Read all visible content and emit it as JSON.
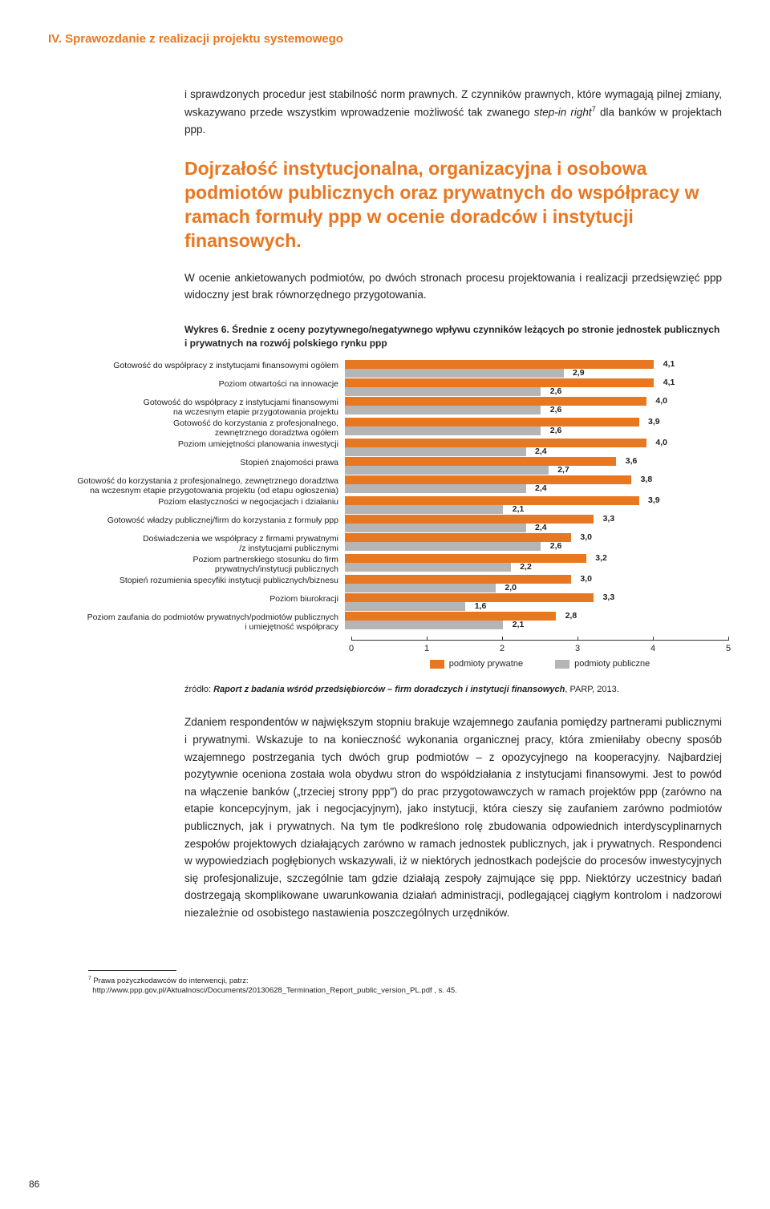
{
  "header": "IV. Sprawozdanie z realizacji projektu systemowego",
  "para1_a": "i sprawdzonych procedur jest stabilność norm prawnych. Z czynników prawnych, które wymagają pilnej zmiany, wskazywano przede wszystkim wprowadzenie możliwość tak zwanego ",
  "para1_i": "step-in right",
  "para1_b": " dla banków w projektach ppp.",
  "section_heading": "Dojrzałość instytucjonalna, organizacyjna i osobowa podmiotów publicznych oraz prywatnych do współpracy w ramach formuły ppp w ocenie doradców i instytucji finansowych.",
  "para2": "W ocenie ankietowanych podmiotów, po dwóch stronach procesu projektowania i realizacji przedsięwzięć ppp widoczny jest brak równorzędnego przygotowania.",
  "chart_caption": "Wykres 6. Średnie z oceny pozytywnego/negatywnego wpływu czynników leżących po stronie jednostek publicznych i prywatnych na rozwój polskiego rynku ppp",
  "chart": {
    "xmax": 5,
    "color_orange": "#e87722",
    "color_gray": "#b5b5b5",
    "xticks": [
      0,
      1,
      2,
      3,
      4,
      5
    ],
    "legend_orange": "podmioty prywatne",
    "legend_gray": "podmioty publiczne",
    "rows": [
      {
        "label": "Gotowość do współpracy z instytucjami finansowymi ogółem",
        "orange": 4.1,
        "gray": 2.9,
        "o": "4,1",
        "g": "2,9"
      },
      {
        "label": "Poziom otwartości na innowacje",
        "orange": 4.1,
        "gray": 2.6,
        "o": "4,1",
        "g": "2,6"
      },
      {
        "label": "Gotowość do współpracy z instytucjami finansowymi\nna wczesnym etapie przygotowania projektu",
        "orange": 4.0,
        "gray": 2.6,
        "o": "4,0",
        "g": "2,6"
      },
      {
        "label": "Gotowość do korzystania z profesjonalnego,\nzewnętrznego doradztwa ogółem",
        "orange": 3.9,
        "gray": 2.6,
        "o": "3,9",
        "g": "2,6"
      },
      {
        "label": "Poziom umiejętności planowania inwestycji",
        "orange": 4.0,
        "gray": 2.4,
        "o": "4,0",
        "g": "2,4"
      },
      {
        "label": "Stopień znajomości prawa",
        "orange": 3.6,
        "gray": 2.7,
        "o": "3,6",
        "g": "2,7"
      },
      {
        "label": "Gotowość do korzystania z profesjonalnego, zewnętrznego doradztwa\nna wczesnym etapie przygotowania projektu (od etapu ogłoszenia)",
        "orange": 3.8,
        "gray": 2.4,
        "o": "3,8",
        "g": "2,4"
      },
      {
        "label": "Poziom elastyczności w negocjacjach i działaniu",
        "orange": 3.9,
        "gray": 2.1,
        "o": "3,9",
        "g": "2,1"
      },
      {
        "label": "Gotowość władzy publicznej/firm do korzystania z formuły ppp",
        "orange": 3.3,
        "gray": 2.4,
        "o": "3,3",
        "g": "2,4"
      },
      {
        "label": "Doświadczenia we współpracy z firmami prywatnymi\n/z instytucjami publicznymi",
        "orange": 3.0,
        "gray": 2.6,
        "o": "3,0",
        "g": "2,6"
      },
      {
        "label": "Poziom partnerskiego stosunku do firm\nprywatnych/instytucji publicznych",
        "orange": 3.2,
        "gray": 2.2,
        "o": "3,2",
        "g": "2,2"
      },
      {
        "label": "Stopień rozumienia specyfiki instytucji publicznych/biznesu",
        "orange": 3.0,
        "gray": 2.0,
        "o": "3,0",
        "g": "2,0"
      },
      {
        "label": "Poziom biurokracji",
        "orange": 3.3,
        "gray": 1.6,
        "o": "3,3",
        "g": "1,6"
      },
      {
        "label": "Poziom zaufania do podmiotów prywatnych/podmiotów publicznych\ni umiejętność współpracy",
        "orange": 2.8,
        "gray": 2.1,
        "o": "2,8",
        "g": "2,1"
      }
    ]
  },
  "source_a": "źródło: ",
  "source_b": "Raport z badania wśród przedsiębiorców – firm doradczych i instytucji finansowych",
  "source_c": ", PARP, 2013.",
  "para3": "Zdaniem respondentów w największym stopniu brakuje wzajemnego zaufania pomiędzy partnerami publicznymi i prywatnymi. Wskazuje to na konieczność wykonania organicznej pracy, która zmieniłaby obecny sposób wzajemnego postrzegania tych dwóch grup podmiotów – z opozycyjnego na kooperacyjny. Najbardziej pozytywnie oceniona została wola obydwu stron do współdziałania z instytucjami finansowymi. Jest to powód na włączenie banków („trzeciej strony ppp\") do prac przygotowawczych w ramach projektów ppp (zarówno na etapie koncepcyjnym, jak i negocjacyjnym), jako instytucji, która cieszy się zaufaniem zarówno podmiotów publicznych, jak i prywatnych. Na tym tle podkreślono rolę zbudowania odpowiednich interdyscyplinarnych zespołów projektowych działających zarówno w ramach jednostek publicznych, jak i prywatnych. Respondenci w wypowiedziach pogłębionych wskazywali, iż w niektórych jednostkach podejście do procesów inwestycyjnych się profesjonalizuje, szczególnie tam gdzie działają zespoły zajmujące się ppp. Niektórzy uczestnicy badań dostrzegają skomplikowane uwarunkowania działań administracji, podlegającej ciągłym kontrolom i nadzorowi niezależnie od osobistego nastawienia poszczególnych urzędników.",
  "footnote_num": "7",
  "footnote_a": "Prawa pożyczkodawców do interwencji, patrz:",
  "footnote_b": "http://www.ppp.gov.pl/Aktualnosci/Documents/20130628_Termination_Report_public_version_PL.pdf , s. 45.",
  "page_number": "86"
}
